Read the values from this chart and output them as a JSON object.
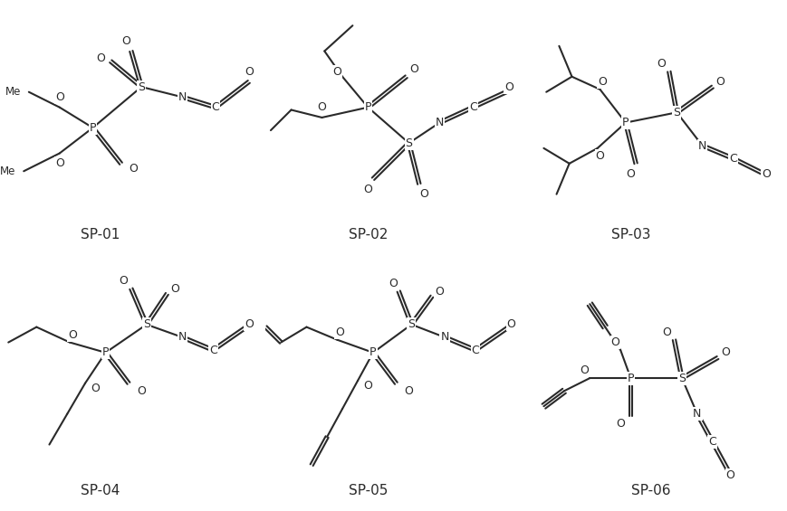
{
  "bg": "#ffffff",
  "lc": "#2a2a2a",
  "tc": "#2a2a2a",
  "lw": 1.5,
  "fs": 9,
  "lfs": 11,
  "dbo": 0.006,
  "structures": [
    "SP-01",
    "SP-02",
    "SP-03",
    "SP-04",
    "SP-05",
    "SP-06"
  ]
}
